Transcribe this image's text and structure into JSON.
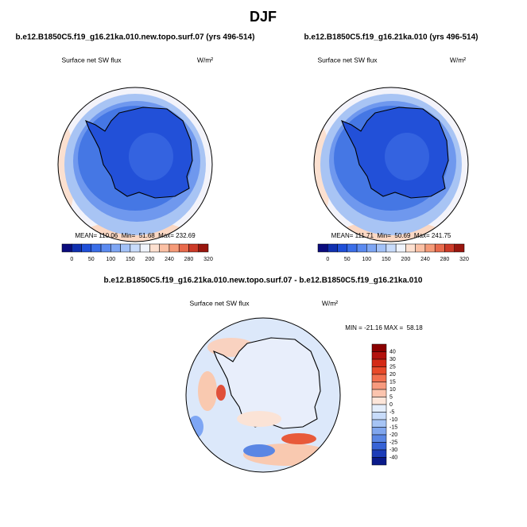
{
  "title": "DJF",
  "panels": [
    {
      "title": "b.e12.B1850C5.f19_g16.21ka.010.new.topo.surf.07 (yrs 496-514)",
      "variable": "Surface net SW flux",
      "units": "W/m²",
      "stats": "MEAN= 110.06  Min=  51.68  Max= 232.69",
      "colorbar": {
        "labels": [
          0,
          50,
          100,
          150,
          200,
          240,
          280,
          320
        ],
        "colors": [
          "#0b0c7d",
          "#1030b0",
          "#1f4fd8",
          "#3a6ee8",
          "#5b8af0",
          "#7ea6f4",
          "#a3c2f8",
          "#c9dcfb",
          "#f0f4fc",
          "#fde0d0",
          "#fbc0a4",
          "#f59a78",
          "#e86a4c",
          "#cc3a28",
          "#99160e"
        ]
      }
    },
    {
      "title": "b.e12.B1850C5.f19_g16.21ka.010 (yrs 496-514)",
      "variable": "Surface net SW flux",
      "units": "W/m²",
      "stats": "MEAN= 111.71  Min=  50.69  Max= 241.75",
      "colorbar": {
        "labels": [
          0,
          50,
          100,
          150,
          200,
          240,
          280,
          320
        ],
        "colors": [
          "#0b0c7d",
          "#1030b0",
          "#1f4fd8",
          "#3a6ee8",
          "#5b8af0",
          "#7ea6f4",
          "#a3c2f8",
          "#c9dcfb",
          "#f0f4fc",
          "#fde0d0",
          "#fbc0a4",
          "#f59a78",
          "#e86a4c",
          "#cc3a28",
          "#99160e"
        ]
      }
    },
    {
      "title": "b.e12.B1850C5.f19_g16.21ka.010.new.topo.surf.07 - b.e12.B1850C5.f19_g16.21ka.010",
      "variable": "Surface net SW flux",
      "units": "W/m²",
      "stats": "MIN = -21.16 MAX =  58.18",
      "colorbar": {
        "labels": [
          40,
          30,
          25,
          20,
          15,
          10,
          5,
          0,
          -5,
          -10,
          -15,
          -20,
          -25,
          -30,
          -40
        ],
        "colors": [
          "#8b0000",
          "#b3120e",
          "#d42a16",
          "#e84a2a",
          "#f27050",
          "#f79a7e",
          "#fbc4ae",
          "#fde6da",
          "#e4eefc",
          "#c8dcfa",
          "#a6c4f5",
          "#80a6ee",
          "#5a86e4",
          "#3763d6",
          "#1c3cb8",
          "#0a1a8a"
        ]
      }
    }
  ]
}
